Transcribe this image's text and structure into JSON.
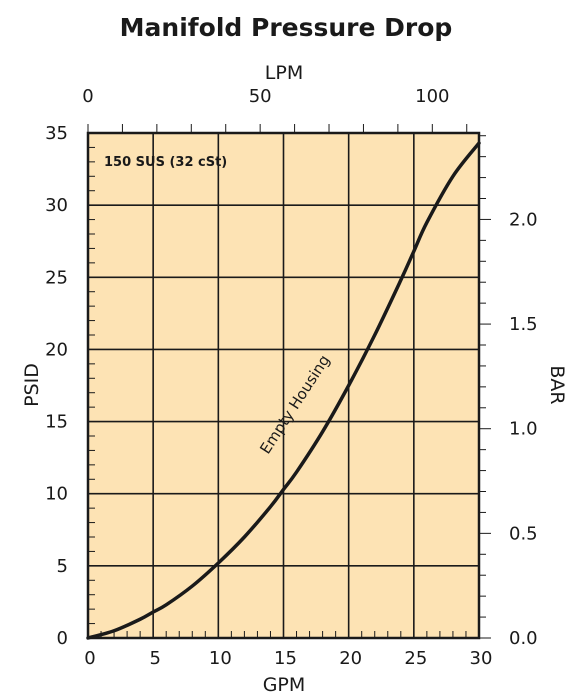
{
  "chart_data": {
    "type": "line",
    "title": "Manifold Pressure Drop",
    "xlabel": "GPM",
    "ylabel": "PSID",
    "x2label": "LPM",
    "y2label": "BAR",
    "xlim": [
      0,
      30
    ],
    "ylim": [
      0,
      35
    ],
    "x2lim": [
      0,
      113.56
    ],
    "y2lim": [
      0,
      2.413
    ],
    "x_ticks": [
      "0",
      "5",
      "10",
      "15",
      "20",
      "25",
      "30"
    ],
    "y_ticks": [
      "0",
      "5",
      "10",
      "15",
      "20",
      "25",
      "30",
      "35"
    ],
    "x2_ticks": [
      "0",
      "50",
      "100"
    ],
    "y2_ticks": [
      "0.0",
      "0.5",
      "1.0",
      "1.5",
      "2.0"
    ],
    "grid": true,
    "annotation": "150 SUS (32 cSt)",
    "series": [
      {
        "name": "Empty Housing",
        "x": [
          0,
          2,
          4,
          5,
          6,
          8,
          10,
          12,
          14,
          15,
          16,
          18,
          20,
          22,
          24,
          25,
          26,
          28,
          30
        ],
        "y": [
          0,
          0.5,
          1.3,
          1.8,
          2.3,
          3.6,
          5.2,
          7.0,
          9.1,
          10.3,
          11.5,
          14.3,
          17.5,
          21.0,
          24.8,
          26.8,
          28.8,
          32.0,
          34.3
        ]
      }
    ],
    "colors": {
      "plot_background": "#fde3b4",
      "grid": "#1a1a1a",
      "line": "#1a1a1a"
    }
  }
}
